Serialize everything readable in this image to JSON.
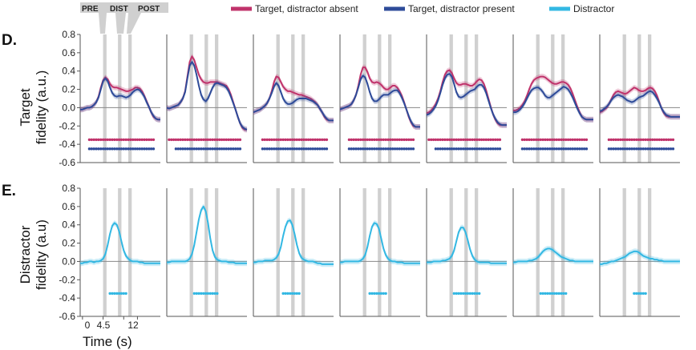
{
  "panels": {
    "D": {
      "letter": "D.",
      "ylabel_line1": "Target",
      "ylabel_line2": "fidelity (a.u.)"
    },
    "E": {
      "letter": "E.",
      "ylabel_line1": "Distractor",
      "ylabel_line2": "fidelity (a.u)"
    }
  },
  "epoch_labels": [
    "PRE",
    "DIST",
    "POST"
  ],
  "legend": [
    {
      "label": "Target, distractor absent",
      "color": "#c0336b"
    },
    {
      "label": "Target, distractor present",
      "color": "#2e4b99"
    },
    {
      "label": "Distractor",
      "color": "#33b8e3"
    }
  ],
  "xlabel": "Time (s)",
  "colors": {
    "absent": "#c0336b",
    "present": "#2e4b99",
    "distractor": "#33b8e3",
    "epoch_shade": "#d0d0d0",
    "axis": "#555555"
  },
  "chart_data": {
    "type": "line",
    "xlim": [
      -0.5,
      17
    ],
    "ylim": [
      -0.6,
      0.8
    ],
    "yticks": [
      "0.8",
      "0.6",
      "0.4",
      "0.2",
      "0.0",
      "-0.2",
      "-0.4",
      "-0.6"
    ],
    "xticks": [
      "0",
      "4.5",
      "9",
      "12"
    ],
    "epoch_windows": [
      [
        4.5,
        5.25
      ],
      [
        7.75,
        8.5
      ],
      [
        10.0,
        10.75
      ]
    ],
    "x": [
      -0.5,
      0,
      0.5,
      1,
      1.5,
      2,
      2.5,
      3,
      3.5,
      4,
      4.5,
      5,
      5.5,
      6,
      6.5,
      7,
      7.5,
      8,
      8.5,
      9,
      9.5,
      10,
      10.5,
      11,
      11.5,
      12,
      12.5,
      13,
      13.5,
      14,
      14.5,
      15,
      15.5,
      16,
      16.5,
      17
    ],
    "subplots": [
      {
        "target_absent": [
          -0.02,
          -0.02,
          -0.01,
          0.0,
          0.0,
          0.01,
          0.03,
          0.06,
          0.12,
          0.22,
          0.3,
          0.33,
          0.31,
          0.26,
          0.23,
          0.22,
          0.22,
          0.21,
          0.2,
          0.19,
          0.18,
          0.18,
          0.19,
          0.2,
          0.22,
          0.22,
          0.21,
          0.18,
          0.13,
          0.07,
          0.01,
          -0.05,
          -0.1,
          -0.12,
          -0.13,
          -0.13
        ],
        "target_present": [
          -0.02,
          -0.02,
          -0.01,
          0.0,
          0.0,
          0.01,
          0.03,
          0.06,
          0.11,
          0.2,
          0.29,
          0.32,
          0.29,
          0.22,
          0.16,
          0.13,
          0.12,
          0.13,
          0.13,
          0.12,
          0.11,
          0.12,
          0.14,
          0.17,
          0.19,
          0.2,
          0.19,
          0.16,
          0.12,
          0.06,
          0.01,
          -0.05,
          -0.09,
          -0.12,
          -0.13,
          -0.13
        ],
        "distractor": [
          -0.02,
          -0.02,
          -0.01,
          -0.01,
          0.0,
          0.0,
          -0.01,
          0.0,
          0.0,
          0.01,
          0.03,
          0.08,
          0.18,
          0.3,
          0.39,
          0.42,
          0.4,
          0.33,
          0.22,
          0.12,
          0.06,
          0.03,
          0.01,
          0.0,
          0.0,
          0.0,
          -0.01,
          -0.01,
          -0.02,
          -0.02,
          -0.02,
          -0.02,
          -0.02,
          -0.02,
          -0.02,
          -0.02
        ],
        "sig_absent": [
          1.5,
          15.5
        ],
        "sig_present": [
          1.5,
          15.5
        ],
        "sig_distractor": [
          6.0,
          9.5
        ]
      },
      {
        "target_absent": [
          0.0,
          -0.01,
          0.0,
          0.01,
          0.02,
          0.03,
          0.06,
          0.1,
          0.18,
          0.34,
          0.5,
          0.56,
          0.52,
          0.44,
          0.36,
          0.31,
          0.28,
          0.27,
          0.27,
          0.28,
          0.28,
          0.28,
          0.28,
          0.27,
          0.26,
          0.25,
          0.24,
          0.2,
          0.14,
          0.06,
          -0.02,
          -0.1,
          -0.17,
          -0.22,
          -0.24,
          -0.24
        ],
        "target_present": [
          0.0,
          -0.01,
          0.0,
          0.01,
          0.02,
          0.03,
          0.06,
          0.1,
          0.17,
          0.32,
          0.46,
          0.5,
          0.46,
          0.36,
          0.24,
          0.14,
          0.09,
          0.07,
          0.1,
          0.16,
          0.22,
          0.26,
          0.27,
          0.26,
          0.25,
          0.24,
          0.22,
          0.18,
          0.12,
          0.05,
          -0.02,
          -0.1,
          -0.17,
          -0.21,
          -0.23,
          -0.24
        ],
        "distractor": [
          -0.01,
          -0.01,
          0.0,
          0.0,
          0.0,
          0.0,
          0.0,
          0.0,
          0.0,
          0.01,
          0.03,
          0.08,
          0.18,
          0.32,
          0.46,
          0.56,
          0.6,
          0.55,
          0.42,
          0.25,
          0.12,
          0.05,
          0.02,
          0.01,
          0.0,
          0.0,
          0.0,
          -0.01,
          -0.01,
          -0.01,
          -0.02,
          -0.02,
          -0.02,
          -0.02,
          -0.02,
          -0.02
        ],
        "sig_absent": [
          0.0,
          15.5
        ],
        "sig_present": [
          1.5,
          15.5
        ],
        "sig_distractor": [
          5.5,
          10.5
        ]
      },
      {
        "target_absent": [
          -0.05,
          -0.04,
          -0.03,
          -0.02,
          0.0,
          0.02,
          0.05,
          0.1,
          0.18,
          0.28,
          0.34,
          0.33,
          0.28,
          0.23,
          0.2,
          0.18,
          0.18,
          0.17,
          0.16,
          0.15,
          0.14,
          0.14,
          0.13,
          0.12,
          0.11,
          0.1,
          0.08,
          0.06,
          0.03,
          -0.01,
          -0.05,
          -0.1,
          -0.13,
          -0.14,
          -0.14,
          -0.14
        ],
        "target_present": [
          -0.05,
          -0.04,
          -0.03,
          -0.02,
          0.0,
          0.02,
          0.05,
          0.1,
          0.16,
          0.23,
          0.27,
          0.24,
          0.17,
          0.1,
          0.06,
          0.04,
          0.04,
          0.05,
          0.07,
          0.09,
          0.1,
          0.1,
          0.1,
          0.1,
          0.09,
          0.08,
          0.07,
          0.05,
          0.03,
          -0.01,
          -0.05,
          -0.09,
          -0.12,
          -0.14,
          -0.14,
          -0.14
        ],
        "distractor": [
          -0.01,
          -0.01,
          0.0,
          0.0,
          0.0,
          0.01,
          0.01,
          0.01,
          0.01,
          0.02,
          0.04,
          0.08,
          0.16,
          0.28,
          0.38,
          0.44,
          0.45,
          0.4,
          0.3,
          0.18,
          0.09,
          0.04,
          0.02,
          0.01,
          0.0,
          0.0,
          0.0,
          -0.01,
          -0.02,
          -0.02,
          -0.03,
          -0.03,
          -0.03,
          -0.03,
          -0.03,
          -0.03
        ],
        "sig_absent": [
          1.5,
          15.5
        ],
        "sig_present": [
          1.5,
          15.5
        ],
        "sig_distractor": [
          6.0,
          9.5
        ]
      },
      {
        "target_absent": [
          -0.02,
          -0.01,
          0.0,
          0.01,
          0.02,
          0.04,
          0.08,
          0.14,
          0.24,
          0.36,
          0.44,
          0.44,
          0.39,
          0.32,
          0.28,
          0.27,
          0.28,
          0.27,
          0.25,
          0.22,
          0.2,
          0.2,
          0.22,
          0.24,
          0.24,
          0.22,
          0.18,
          0.13,
          0.06,
          -0.02,
          -0.1,
          -0.16,
          -0.2,
          -0.21,
          -0.21,
          -0.21
        ],
        "target_present": [
          -0.02,
          -0.01,
          0.0,
          0.01,
          0.02,
          0.04,
          0.08,
          0.14,
          0.22,
          0.31,
          0.35,
          0.33,
          0.26,
          0.17,
          0.1,
          0.07,
          0.07,
          0.09,
          0.12,
          0.14,
          0.14,
          0.14,
          0.16,
          0.18,
          0.19,
          0.19,
          0.16,
          0.11,
          0.05,
          -0.02,
          -0.09,
          -0.15,
          -0.19,
          -0.21,
          -0.21,
          -0.21
        ],
        "distractor": [
          -0.01,
          -0.01,
          0.0,
          0.0,
          0.0,
          0.0,
          0.0,
          0.0,
          0.0,
          0.01,
          0.03,
          0.07,
          0.16,
          0.28,
          0.38,
          0.42,
          0.41,
          0.36,
          0.25,
          0.14,
          0.07,
          0.03,
          0.01,
          0.0,
          0.0,
          -0.01,
          -0.01,
          -0.01,
          -0.02,
          -0.02,
          -0.02,
          -0.02,
          -0.02,
          -0.02,
          -0.02,
          -0.02
        ],
        "sig_absent": [
          1.5,
          15.5
        ],
        "sig_present": [
          1.5,
          15.5
        ],
        "sig_distractor": [
          6.0,
          9.5
        ]
      },
      {
        "target_absent": [
          -0.06,
          -0.05,
          -0.03,
          0.0,
          0.04,
          0.1,
          0.18,
          0.28,
          0.36,
          0.4,
          0.41,
          0.38,
          0.32,
          0.27,
          0.25,
          0.25,
          0.26,
          0.26,
          0.25,
          0.24,
          0.24,
          0.26,
          0.29,
          0.31,
          0.3,
          0.26,
          0.19,
          0.1,
          0.01,
          -0.07,
          -0.13,
          -0.17,
          -0.19,
          -0.19,
          -0.19,
          -0.19
        ],
        "target_present": [
          -0.08,
          -0.07,
          -0.05,
          -0.02,
          0.02,
          0.08,
          0.16,
          0.25,
          0.32,
          0.36,
          0.37,
          0.34,
          0.26,
          0.17,
          0.12,
          0.11,
          0.12,
          0.14,
          0.16,
          0.18,
          0.19,
          0.2,
          0.23,
          0.25,
          0.25,
          0.22,
          0.16,
          0.08,
          0.0,
          -0.07,
          -0.12,
          -0.16,
          -0.18,
          -0.19,
          -0.19,
          -0.19
        ],
        "distractor": [
          -0.01,
          -0.01,
          -0.01,
          0.0,
          0.0,
          0.0,
          0.0,
          0.01,
          0.01,
          0.02,
          0.03,
          0.06,
          0.12,
          0.22,
          0.32,
          0.37,
          0.37,
          0.32,
          0.23,
          0.13,
          0.06,
          0.02,
          0.0,
          -0.01,
          -0.01,
          -0.01,
          -0.01,
          -0.01,
          -0.02,
          -0.02,
          -0.02,
          -0.02,
          -0.02,
          -0.02,
          -0.02,
          -0.02
        ],
        "sig_absent": [
          0.0,
          15.5
        ],
        "sig_present": [
          1.5,
          15.5
        ],
        "sig_distractor": [
          5.5,
          11.0
        ]
      },
      {
        "target_absent": [
          -0.03,
          -0.03,
          -0.02,
          0.0,
          0.03,
          0.07,
          0.13,
          0.2,
          0.26,
          0.3,
          0.32,
          0.33,
          0.34,
          0.34,
          0.33,
          0.31,
          0.29,
          0.27,
          0.26,
          0.26,
          0.27,
          0.28,
          0.28,
          0.27,
          0.25,
          0.21,
          0.15,
          0.08,
          0.01,
          -0.05,
          -0.1,
          -0.12,
          -0.13,
          -0.13,
          -0.13,
          -0.13
        ],
        "target_present": [
          -0.05,
          -0.05,
          -0.04,
          -0.02,
          0.01,
          0.05,
          0.1,
          0.15,
          0.19,
          0.21,
          0.22,
          0.22,
          0.2,
          0.17,
          0.13,
          0.11,
          0.11,
          0.13,
          0.15,
          0.17,
          0.19,
          0.21,
          0.23,
          0.22,
          0.2,
          0.16,
          0.11,
          0.05,
          -0.01,
          -0.06,
          -0.1,
          -0.12,
          -0.13,
          -0.13,
          -0.13,
          -0.13
        ],
        "distractor": [
          -0.01,
          -0.01,
          0.0,
          0.0,
          0.0,
          0.0,
          0.0,
          0.01,
          0.01,
          0.02,
          0.03,
          0.05,
          0.08,
          0.11,
          0.13,
          0.14,
          0.14,
          0.13,
          0.11,
          0.09,
          0.07,
          0.05,
          0.04,
          0.03,
          0.02,
          0.01,
          0.01,
          0.0,
          0.0,
          0.0,
          0.0,
          0.0,
          0.0,
          0.0,
          0.0,
          0.0
        ],
        "sig_absent": [
          1.5,
          15.5
        ],
        "sig_present": [
          1.5,
          15.5
        ],
        "sig_distractor": [
          5.5,
          11.0
        ]
      },
      {
        "target_absent": [
          -0.05,
          -0.04,
          -0.02,
          0.0,
          0.04,
          0.09,
          0.14,
          0.17,
          0.18,
          0.17,
          0.16,
          0.15,
          0.16,
          0.18,
          0.2,
          0.22,
          0.21,
          0.19,
          0.18,
          0.18,
          0.19,
          0.21,
          0.22,
          0.21,
          0.18,
          0.13,
          0.06,
          -0.01,
          -0.06,
          -0.09,
          -0.1,
          -0.1,
          -0.1,
          -0.1,
          -0.1,
          -0.1
        ],
        "target_present": [
          -0.04,
          -0.03,
          -0.01,
          0.01,
          0.04,
          0.08,
          0.11,
          0.13,
          0.14,
          0.13,
          0.12,
          0.1,
          0.08,
          0.07,
          0.06,
          0.07,
          0.09,
          0.11,
          0.12,
          0.13,
          0.15,
          0.17,
          0.18,
          0.17,
          0.14,
          0.1,
          0.05,
          -0.01,
          -0.05,
          -0.08,
          -0.09,
          -0.1,
          -0.1,
          -0.1,
          -0.1,
          -0.1
        ],
        "distractor": [
          -0.03,
          -0.03,
          -0.02,
          -0.02,
          -0.01,
          0.0,
          0.0,
          0.01,
          0.02,
          0.03,
          0.04,
          0.05,
          0.07,
          0.09,
          0.1,
          0.11,
          0.11,
          0.1,
          0.08,
          0.06,
          0.05,
          0.04,
          0.03,
          0.03,
          0.02,
          0.02,
          0.01,
          0.01,
          0.0,
          0.0,
          0.0,
          0.0,
          0.0,
          0.0,
          0.0,
          0.0
        ],
        "sig_absent": [
          1.5,
          15.5
        ],
        "sig_present": [
          1.5,
          15.5
        ],
        "sig_distractor": [
          7.0,
          9.5
        ]
      }
    ]
  }
}
